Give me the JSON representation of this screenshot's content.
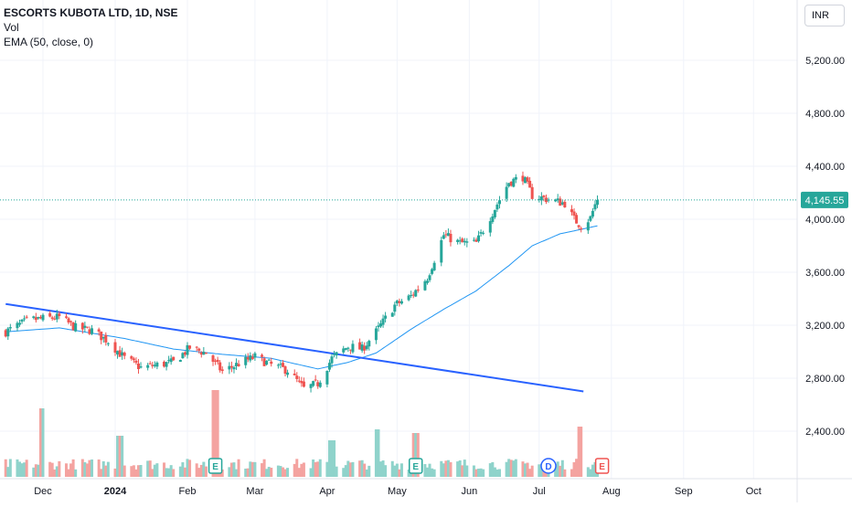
{
  "header": {
    "symbol_title": "ESCORTS KUBOTA LTD, 1D, NSE",
    "indicator_vol": "Vol",
    "indicator_ema": "EMA (50, close, 0)",
    "currency": "INR"
  },
  "colors": {
    "up": "#26a69a",
    "down": "#ef5350",
    "vol_up": "#8fd3cb",
    "vol_down": "#f4a3a0",
    "ema": "#2196f3",
    "trendline": "#2962ff",
    "grid": "#f0f3fa",
    "axis_text": "#131722",
    "last_price_bg": "#26a69a"
  },
  "chart_data": {
    "type": "candlestick",
    "y_axis": {
      "min": 2100,
      "max": 5500,
      "tick_values": [
        2400,
        2800,
        3200,
        3600,
        4000,
        4400,
        4800,
        5200
      ],
      "tick_labels": [
        "2,400.00",
        "2,800.00",
        "3,200.00",
        "3,600.00",
        "4,000.00",
        "4,400.00",
        "4,800.00",
        "5,200.00"
      ]
    },
    "x_axis": {
      "labels": [
        "Dec",
        "2024",
        "Feb",
        "Mar",
        "Apr",
        "May",
        "Jun",
        "Jul",
        "Aug",
        "Sep",
        "Oct"
      ],
      "label_dates": [
        "2023-12-01",
        "2024-01-01",
        "2024-02-01",
        "2024-03-01",
        "2024-04-01",
        "2024-05-01",
        "2024-06-01",
        "2024-07-01",
        "2024-08-01",
        "2024-09-01",
        "2024-10-01"
      ],
      "start": "2023-11-15",
      "end": "2024-10-20"
    },
    "last_price": 4145.55,
    "last_price_label": "4,145.55",
    "price_keypoints": [
      [
        "2023-11-15",
        3150
      ],
      [
        "2023-11-25",
        3240
      ],
      [
        "2023-12-08",
        3260
      ],
      [
        "2023-12-15",
        3180
      ],
      [
        "2023-12-22",
        3160
      ],
      [
        "2023-12-29",
        3080
      ],
      [
        "2024-01-05",
        2950
      ],
      [
        "2024-01-12",
        2880
      ],
      [
        "2024-01-19",
        2900
      ],
      [
        "2024-01-26",
        2920
      ],
      [
        "2024-02-02",
        3030
      ],
      [
        "2024-02-09",
        2990
      ],
      [
        "2024-02-16",
        2850
      ],
      [
        "2024-02-23",
        2910
      ],
      [
        "2024-03-01",
        2960
      ],
      [
        "2024-03-08",
        2900
      ],
      [
        "2024-03-15",
        2860
      ],
      [
        "2024-03-22",
        2720
      ],
      [
        "2024-03-28",
        2760
      ],
      [
        "2024-04-03",
        2950
      ],
      [
        "2024-04-10",
        3040
      ],
      [
        "2024-04-16",
        3020
      ],
      [
        "2024-04-22",
        3150
      ],
      [
        "2024-04-30",
        3350
      ],
      [
        "2024-05-07",
        3420
      ],
      [
        "2024-05-14",
        3560
      ],
      [
        "2024-05-21",
        3880
      ],
      [
        "2024-05-28",
        3820
      ],
      [
        "2024-06-04",
        3820
      ],
      [
        "2024-06-11",
        4050
      ],
      [
        "2024-06-18",
        4280
      ],
      [
        "2024-06-24",
        4320
      ],
      [
        "2024-06-28",
        4180
      ],
      [
        "2024-07-05",
        4150
      ],
      [
        "2024-07-12",
        4120
      ],
      [
        "2024-07-16",
        4000
      ],
      [
        "2024-07-19",
        3950
      ],
      [
        "2024-07-23",
        4010
      ],
      [
        "2024-07-25",
        4110
      ],
      [
        "2024-07-26",
        4145.55
      ]
    ],
    "ema": [
      [
        "2023-11-15",
        3150
      ],
      [
        "2023-12-08",
        3180
      ],
      [
        "2024-01-05",
        3100
      ],
      [
        "2024-01-26",
        3020
      ],
      [
        "2024-02-16",
        2980
      ],
      [
        "2024-03-08",
        2950
      ],
      [
        "2024-03-28",
        2870
      ],
      [
        "2024-04-10",
        2920
      ],
      [
        "2024-04-22",
        2990
      ],
      [
        "2024-05-07",
        3170
      ],
      [
        "2024-05-21",
        3320
      ],
      [
        "2024-06-04",
        3460
      ],
      [
        "2024-06-18",
        3650
      ],
      [
        "2024-06-28",
        3800
      ],
      [
        "2024-07-10",
        3890
      ],
      [
        "2024-07-26",
        3950
      ]
    ],
    "trendline": {
      "start": [
        "2023-11-15",
        3360
      ],
      "end": [
        "2024-07-20",
        2700
      ]
    },
    "events": [
      {
        "date": "2024-02-13",
        "label": "E",
        "kind": "earnings"
      },
      {
        "date": "2024-05-09",
        "label": "E",
        "kind": "earnings"
      },
      {
        "date": "2024-07-05",
        "label": "D",
        "kind": "dividend"
      },
      {
        "date": "2024-07-28",
        "label": "E",
        "kind": "earnings-upcoming"
      }
    ],
    "volume_spikes": [
      [
        "2023-12-01",
        0.75
      ],
      [
        "2024-01-03",
        0.45
      ],
      [
        "2024-02-13",
        0.95
      ],
      [
        "2024-04-03",
        0.4
      ],
      [
        "2024-04-22",
        0.52
      ],
      [
        "2024-05-09",
        0.48
      ],
      [
        "2024-07-19",
        0.55
      ]
    ]
  }
}
